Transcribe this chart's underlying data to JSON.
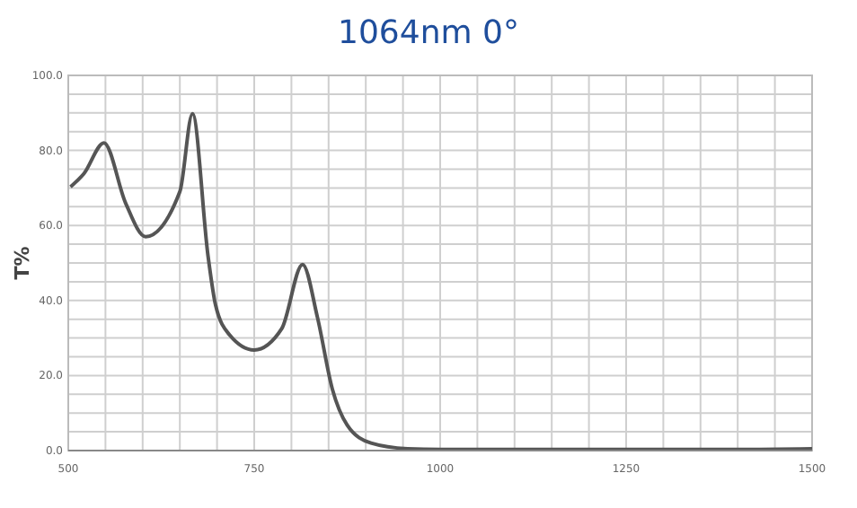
{
  "chart_data": {
    "type": "line",
    "title": "1064nm 0°",
    "ylabel": "T%",
    "color": "#555555",
    "x": [
      503,
      521,
      548,
      577,
      604,
      650,
      667,
      688,
      698,
      717,
      750,
      787,
      815,
      835,
      855,
      875,
      907,
      956,
      1000,
      1200,
      1400,
      1500
    ],
    "values": [
      70.3,
      73.8,
      82,
      66,
      57,
      69,
      89.8,
      51.7,
      38.8,
      30.8,
      26.8,
      32.5,
      49.6,
      35.5,
      16.4,
      6.8,
      2,
      0.5,
      0.3,
      0.3,
      0.3,
      0.5
    ],
    "xlim": [
      500,
      1500
    ],
    "xticks": [
      {
        "value": 500,
        "label": "500"
      },
      {
        "value": 550,
        "label": null
      },
      {
        "value": 600,
        "label": null
      },
      {
        "value": 650,
        "label": null
      },
      {
        "value": 700,
        "label": null
      },
      {
        "value": 750,
        "label": "750"
      },
      {
        "value": 800,
        "label": null
      },
      {
        "value": 850,
        "label": null
      },
      {
        "value": 900,
        "label": null
      },
      {
        "value": 950,
        "label": null
      },
      {
        "value": 1000,
        "label": "1000"
      },
      {
        "value": 1050,
        "label": null
      },
      {
        "value": 1100,
        "label": null
      },
      {
        "value": 1150,
        "label": null
      },
      {
        "value": 1200,
        "label": null
      },
      {
        "value": 1250,
        "label": "1250"
      },
      {
        "value": 1300,
        "label": null
      },
      {
        "value": 1350,
        "label": null
      },
      {
        "value": 1400,
        "label": null
      },
      {
        "value": 1450,
        "label": null
      },
      {
        "value": 1500,
        "label": "1500"
      }
    ],
    "ylim": [
      0,
      100
    ],
    "yticks": [
      {
        "value": 0,
        "label": "0.0"
      },
      {
        "value": 5,
        "label": null
      },
      {
        "value": 10,
        "label": null
      },
      {
        "value": 15,
        "label": null
      },
      {
        "value": 20,
        "label": "20.0"
      },
      {
        "value": 25,
        "label": null
      },
      {
        "value": 30,
        "label": null
      },
      {
        "value": 35,
        "label": null
      },
      {
        "value": 40,
        "label": "40.0"
      },
      {
        "value": 45,
        "label": null
      },
      {
        "value": 50,
        "label": null
      },
      {
        "value": 55,
        "label": null
      },
      {
        "value": 60,
        "label": "60.0"
      },
      {
        "value": 65,
        "label": null
      },
      {
        "value": 70,
        "label": null
      },
      {
        "value": 75,
        "label": null
      },
      {
        "value": 80,
        "label": "80.0"
      },
      {
        "value": 85,
        "label": null
      },
      {
        "value": 90,
        "label": null
      },
      {
        "value": 95,
        "label": null
      },
      {
        "value": 100,
        "label": "100.0"
      }
    ],
    "grid": true,
    "marker": "none",
    "line_style": "solid"
  }
}
